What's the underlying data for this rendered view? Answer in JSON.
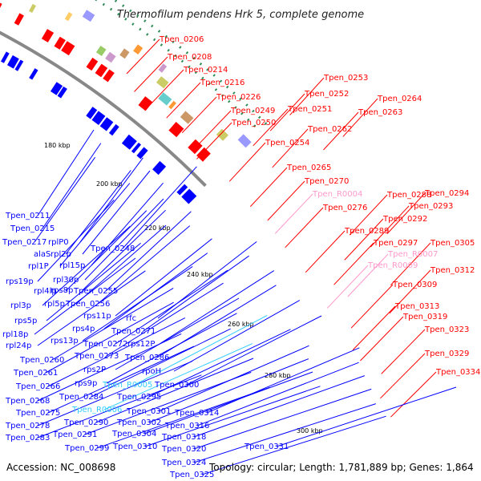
{
  "title": "Thermofilum pendens Hrk 5, complete genome",
  "footer": {
    "accession": "Accession: NC_008698",
    "summary": "Topology: circular; Length: 1,781,889 bp; Genes: 1,864"
  },
  "colors": {
    "forward": "#ff0000",
    "reverse": "#0000ff",
    "rna_forward": "#ff99cc",
    "rna_reverse": "#33ccff",
    "backbone": "#888888",
    "dots": "#2e8b57"
  },
  "scale_ticks": [
    "180 kbp",
    "200 kbp",
    "220 kbp",
    "240 kbp",
    "260 kbp",
    "280 kbp",
    "300 kbp"
  ],
  "labels_right": [
    {
      "text": "Tpen_0206",
      "color": "#ff0000"
    },
    {
      "text": "Tpen_0208",
      "color": "#ff0000"
    },
    {
      "text": "Tpen_0214",
      "color": "#ff0000"
    },
    {
      "text": "Tpen_0216",
      "color": "#ff0000"
    },
    {
      "text": "Tpen_0226",
      "color": "#ff0000"
    },
    {
      "text": "Tpen_0249",
      "color": "#ff0000"
    },
    {
      "text": "Tpen_0250",
      "color": "#ff0000"
    },
    {
      "text": "Tpen_0251",
      "color": "#ff0000"
    },
    {
      "text": "Tpen_0252",
      "color": "#ff0000"
    },
    {
      "text": "Tpen_0253",
      "color": "#ff0000"
    },
    {
      "text": "Tpen_0263",
      "color": "#ff0000"
    },
    {
      "text": "Tpen_0264",
      "color": "#ff0000"
    },
    {
      "text": "Tpen_0262",
      "color": "#ff0000"
    },
    {
      "text": "Tpen_0254",
      "color": "#ff0000"
    },
    {
      "text": "Tpen_0265",
      "color": "#ff0000"
    },
    {
      "text": "Tpen_0270",
      "color": "#ff0000"
    },
    {
      "text": "Tpen_R0004",
      "color": "#ff99cc"
    },
    {
      "text": "Tpen_0276",
      "color": "#ff0000"
    },
    {
      "text": "Tpen_0288",
      "color": "#ff0000"
    },
    {
      "text": "Tpen_0294",
      "color": "#ff0000"
    },
    {
      "text": "Tpen_0293",
      "color": "#ff0000"
    },
    {
      "text": "Tpen_0292",
      "color": "#ff0000"
    },
    {
      "text": "Tpen_0289",
      "color": "#ff0000"
    },
    {
      "text": "Tpen_0297",
      "color": "#ff0000"
    },
    {
      "text": "Tpen_0305",
      "color": "#ff0000"
    },
    {
      "text": "Tpen_R0007",
      "color": "#ff99cc"
    },
    {
      "text": "Tpen_R0009",
      "color": "#ff99cc"
    },
    {
      "text": "Tpen_0312",
      "color": "#ff0000"
    },
    {
      "text": "Tpen_0309",
      "color": "#ff0000"
    },
    {
      "text": "Tpen_0313",
      "color": "#ff0000"
    },
    {
      "text": "Tpen_0319",
      "color": "#ff0000"
    },
    {
      "text": "Tpen_0323",
      "color": "#ff0000"
    },
    {
      "text": "Tpen_0329",
      "color": "#ff0000"
    },
    {
      "text": "Tpen_0334",
      "color": "#ff0000"
    }
  ],
  "labels_left": [
    {
      "text": "Tpen_0211",
      "color": "#0000ff"
    },
    {
      "text": "Tpen_0215",
      "color": "#0000ff"
    },
    {
      "text": "Tpen_0217",
      "color": "#0000ff"
    },
    {
      "text": "rplP0",
      "color": "#0000ff"
    },
    {
      "text": "alaS",
      "color": "#0000ff"
    },
    {
      "text": "rpl2p",
      "color": "#0000ff"
    },
    {
      "text": "rpl1P",
      "color": "#0000ff"
    },
    {
      "text": "rpl15p",
      "color": "#0000ff"
    },
    {
      "text": "Tpen_0248",
      "color": "#0000ff"
    },
    {
      "text": "rps19p",
      "color": "#0000ff"
    },
    {
      "text": "rpl30p",
      "color": "#0000ff"
    },
    {
      "text": "rpl4lp",
      "color": "#0000ff"
    },
    {
      "text": "rps8p",
      "color": "#0000ff"
    },
    {
      "text": "Tpen_0255",
      "color": "#0000ff"
    },
    {
      "text": "rpl3p",
      "color": "#0000ff"
    },
    {
      "text": "rpl5p",
      "color": "#0000ff"
    },
    {
      "text": "Tpen_0256",
      "color": "#0000ff"
    },
    {
      "text": "rps5p",
      "color": "#0000ff"
    },
    {
      "text": "rps11p",
      "color": "#0000ff"
    },
    {
      "text": "rfc",
      "color": "#0000ff"
    },
    {
      "text": "rpl18p",
      "color": "#0000ff"
    },
    {
      "text": "rps4p",
      "color": "#0000ff"
    },
    {
      "text": "Tpen_0271",
      "color": "#0000ff"
    },
    {
      "text": "rpl24p",
      "color": "#0000ff"
    },
    {
      "text": "rps13p",
      "color": "#0000ff"
    },
    {
      "text": "Tpen_0272",
      "color": "#0000ff"
    },
    {
      "text": "rps12P",
      "color": "#0000ff"
    },
    {
      "text": "Tpen_0273",
      "color": "#0000ff"
    },
    {
      "text": "Tpen_0286",
      "color": "#0000ff"
    },
    {
      "text": "Tpen_0260",
      "color": "#0000ff"
    },
    {
      "text": "rps2P",
      "color": "#0000ff"
    },
    {
      "text": "rpoH",
      "color": "#0000ff"
    },
    {
      "text": "Tpen_0261",
      "color": "#0000ff"
    },
    {
      "text": "rps9p",
      "color": "#0000ff"
    },
    {
      "text": "Tpen_R0005",
      "color": "#33ccff"
    },
    {
      "text": "Tpen_0300",
      "color": "#0000ff"
    },
    {
      "text": "Tpen_0266",
      "color": "#0000ff"
    },
    {
      "text": "Tpen_0284",
      "color": "#0000ff"
    },
    {
      "text": "Tpen_0295",
      "color": "#0000ff"
    },
    {
      "text": "Tpen_0268",
      "color": "#0000ff"
    },
    {
      "text": "Tpen_0275",
      "color": "#0000ff"
    },
    {
      "text": "Tpen_R0006",
      "color": "#33ccff"
    },
    {
      "text": "Tpen_0301",
      "color": "#0000ff"
    },
    {
      "text": "Tpen_0314",
      "color": "#0000ff"
    },
    {
      "text": "Tpen_0278",
      "color": "#0000ff"
    },
    {
      "text": "Tpen_0290",
      "color": "#0000ff"
    },
    {
      "text": "Tpen_0302",
      "color": "#0000ff"
    },
    {
      "text": "Tpen_0316",
      "color": "#0000ff"
    },
    {
      "text": "Tpen_0283",
      "color": "#0000ff"
    },
    {
      "text": "Tpen_0291",
      "color": "#0000ff"
    },
    {
      "text": "Tpen_0304",
      "color": "#0000ff"
    },
    {
      "text": "Tpen_0318",
      "color": "#0000ff"
    },
    {
      "text": "Tpen_0299",
      "color": "#0000ff"
    },
    {
      "text": "Tpen_0310",
      "color": "#0000ff"
    },
    {
      "text": "Tpen_0320",
      "color": "#0000ff"
    },
    {
      "text": "Tpen_0331",
      "color": "#0000ff"
    },
    {
      "text": "Tpen_0324",
      "color": "#0000ff"
    },
    {
      "text": "Tpen_0325",
      "color": "#0000ff"
    }
  ]
}
